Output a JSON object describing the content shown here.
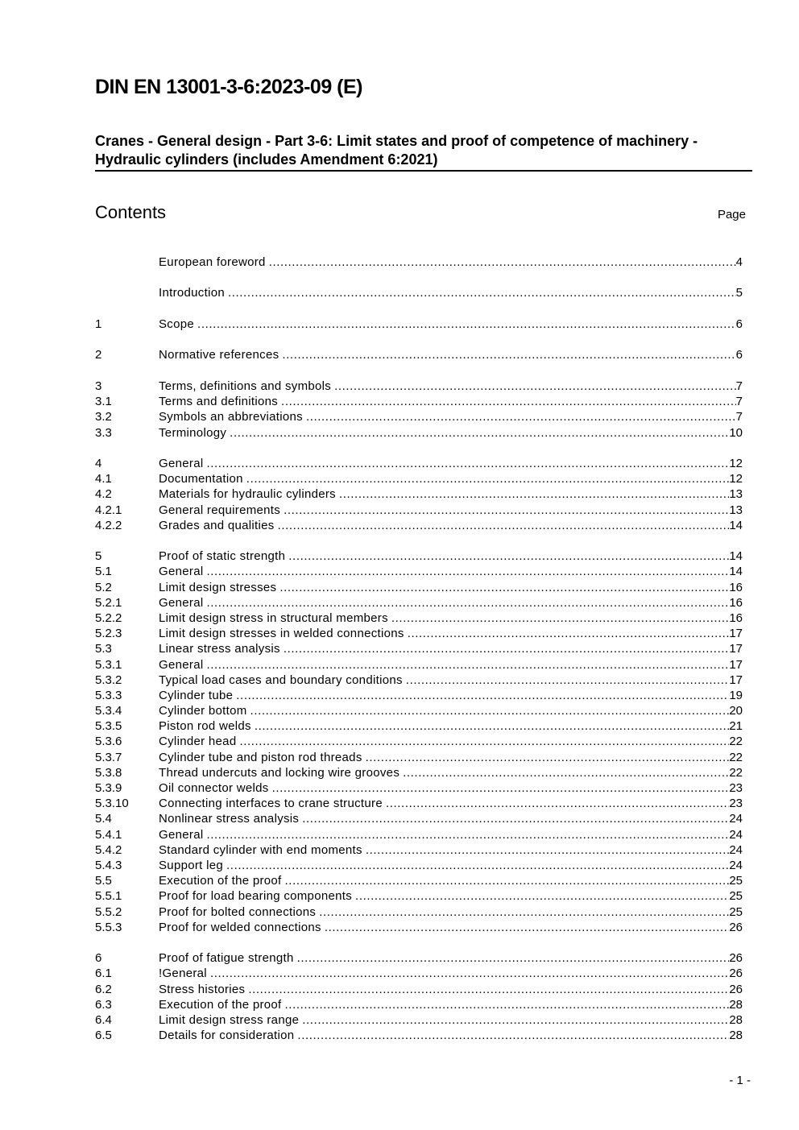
{
  "header": {
    "doc_id": "DIN EN 13001-3-6:2023-09 (E)",
    "subtitle": "Cranes - General design - Part 3-6: Limit states and proof of competence of machinery - Hydraulic cylinders (includes Amendment 6:2021)",
    "contents_heading": "Contents",
    "page_column_label": "Page"
  },
  "toc": [
    [
      {
        "num": "",
        "title": "European foreword",
        "page": "4"
      }
    ],
    [
      {
        "num": "",
        "title": "Introduction",
        "page": "5"
      }
    ],
    [
      {
        "num": "1",
        "title": "Scope",
        "page": "6"
      }
    ],
    [
      {
        "num": "2",
        "title": "Normative references",
        "page": "6"
      }
    ],
    [
      {
        "num": "3",
        "title": "Terms, definitions and symbols",
        "page": "7"
      },
      {
        "num": "3.1",
        "title": "Terms and definitions",
        "page": "7"
      },
      {
        "num": "3.2",
        "title": "Symbols an abbreviations",
        "page": "7"
      },
      {
        "num": "3.3",
        "title": "Terminology",
        "page": "10"
      }
    ],
    [
      {
        "num": "4",
        "title": "General",
        "page": "12"
      },
      {
        "num": "4.1",
        "title": "Documentation",
        "page": "12"
      },
      {
        "num": "4.2",
        "title": "Materials for hydraulic cylinders",
        "page": "13"
      },
      {
        "num": "4.2.1",
        "title": "General requirements",
        "page": "13"
      },
      {
        "num": "4.2.2",
        "title": "Grades and qualities",
        "page": "14"
      }
    ],
    [
      {
        "num": "5",
        "title": "Proof of static strength",
        "page": "14"
      },
      {
        "num": "5.1",
        "title": "General",
        "page": "14"
      },
      {
        "num": "5.2",
        "title": "Limit design stresses",
        "page": "16"
      },
      {
        "num": "5.2.1",
        "title": "General",
        "page": "16"
      },
      {
        "num": "5.2.2",
        "title": "Limit design stress in structural members",
        "page": "16"
      },
      {
        "num": "5.2.3",
        "title": "Limit design stresses in welded connections",
        "page": "17"
      },
      {
        "num": "5.3",
        "title": "Linear stress analysis",
        "page": "17"
      },
      {
        "num": "5.3.1",
        "title": "General",
        "page": "17"
      },
      {
        "num": "5.3.2",
        "title": "Typical load cases and boundary conditions",
        "page": "17"
      },
      {
        "num": "5.3.3",
        "title": "Cylinder tube",
        "page": "19"
      },
      {
        "num": "5.3.4",
        "title": "Cylinder bottom",
        "page": "20"
      },
      {
        "num": "5.3.5",
        "title": "Piston rod welds",
        "page": "21"
      },
      {
        "num": "5.3.6",
        "title": "Cylinder head",
        "page": "22"
      },
      {
        "num": "5.3.7",
        "title": "Cylinder tube and piston rod threads",
        "page": "22"
      },
      {
        "num": "5.3.8",
        "title": "Thread undercuts and locking wire grooves",
        "page": "22"
      },
      {
        "num": "5.3.9",
        "title": "Oil connector welds",
        "page": "23"
      },
      {
        "num": "5.3.10",
        "title": "Connecting interfaces to crane structure",
        "page": "23"
      },
      {
        "num": "5.4",
        "title": "Nonlinear stress analysis",
        "page": "24"
      },
      {
        "num": "5.4.1",
        "title": "General",
        "page": "24"
      },
      {
        "num": "5.4.2",
        "title": "Standard cylinder with end moments",
        "page": "24"
      },
      {
        "num": "5.4.3",
        "title": "Support leg",
        "page": "24"
      },
      {
        "num": "5.5",
        "title": "Execution of the proof",
        "page": "25"
      },
      {
        "num": "5.5.1",
        "title": "Proof for load bearing components",
        "page": "25"
      },
      {
        "num": "5.5.2",
        "title": "Proof for bolted connections",
        "page": "25"
      },
      {
        "num": "5.5.3",
        "title": "Proof for welded connections",
        "page": "26"
      }
    ],
    [
      {
        "num": "6",
        "title": "Proof of fatigue strength",
        "page": "26"
      },
      {
        "num": "6.1",
        "title": "!General",
        "page": "26"
      },
      {
        "num": "6.2",
        "title": "Stress histories",
        "page": "26"
      },
      {
        "num": "6.3",
        "title": "Execution of the proof",
        "page": "28"
      },
      {
        "num": "6.4",
        "title": "Limit design stress range",
        "page": "28"
      },
      {
        "num": "6.5",
        "title": "Details for consideration",
        "page": "28"
      }
    ]
  ],
  "footer": {
    "page_number": "- 1 -"
  }
}
